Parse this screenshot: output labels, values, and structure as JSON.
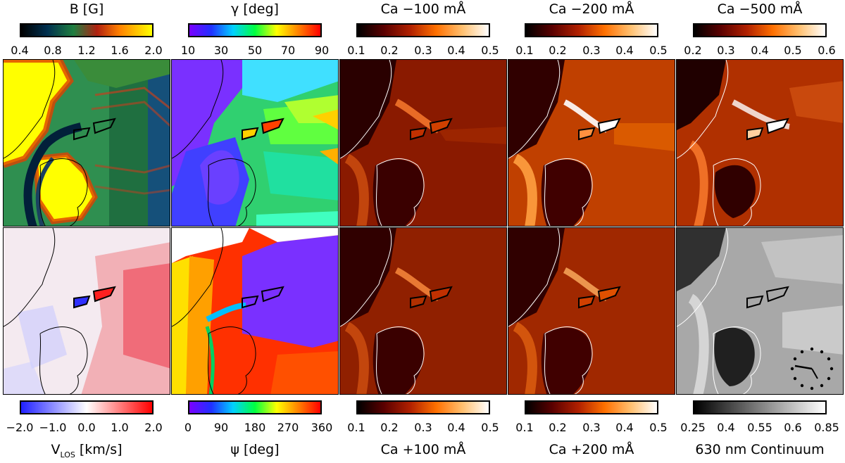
{
  "panels_top": [
    {
      "title": "B [G]",
      "ticks": [
        "0.4",
        "0.8",
        "1.2",
        "1.6",
        "2.0"
      ],
      "cmap": "bfield"
    },
    {
      "title": "γ [deg]",
      "ticks": [
        "10",
        "30",
        "50",
        "70",
        "90"
      ],
      "cmap": "rainbow"
    },
    {
      "title": "Ca −100 mÅ",
      "ticks": [
        "0.1",
        "0.2",
        "0.3",
        "0.4",
        "0.5"
      ],
      "cmap": "heat"
    },
    {
      "title": "Ca −200 mÅ",
      "ticks": [
        "0.1",
        "0.2",
        "0.3",
        "0.4",
        "0.5"
      ],
      "cmap": "heat"
    },
    {
      "title": "Ca −500 mÅ",
      "ticks": [
        "0.2",
        "0.3",
        "0.4",
        "0.5",
        "0.6"
      ],
      "cmap": "heat"
    }
  ],
  "panels_bottom": [
    {
      "title_main": "V",
      "title_sub": "LOS",
      "title_rest": " [km/s]",
      "ticks": [
        "−2.0",
        "−1.0",
        "0.0",
        "1.0",
        "2.0"
      ],
      "cmap": "diverge"
    },
    {
      "title": "ψ [deg]",
      "ticks": [
        "0",
        "90",
        "180",
        "270",
        "360"
      ],
      "cmap": "rainbow"
    },
    {
      "title": "Ca +100 mÅ",
      "ticks": [
        "0.1",
        "0.2",
        "0.3",
        "0.4",
        "0.5"
      ],
      "cmap": "heat"
    },
    {
      "title": "Ca +200 mÅ",
      "ticks": [
        "0.1",
        "0.2",
        "0.3",
        "0.4",
        "0.5"
      ],
      "cmap": "heat"
    },
    {
      "title": "630 nm Continuum",
      "ticks": [
        "0.25",
        "0.4",
        "0.55",
        "0.6",
        "0.85"
      ],
      "cmap": "gray"
    }
  ],
  "colors": {
    "bfield": [
      "#000000",
      "#003050",
      "#1f7f40",
      "#b02010",
      "#ff8000",
      "#ffff00"
    ],
    "rainbow": [
      "#7a00ff",
      "#2030ff",
      "#00d0ff",
      "#00ff40",
      "#ffff00",
      "#ff8000",
      "#ff0000"
    ],
    "heat": [
      "#000000",
      "#5a0000",
      "#b02000",
      "#ff7000",
      "#ffc070",
      "#ffffff"
    ],
    "diverge": [
      "#2020ff",
      "#ffffff",
      "#ff0000"
    ],
    "gray": [
      "#000000",
      "#ffffff"
    ]
  }
}
